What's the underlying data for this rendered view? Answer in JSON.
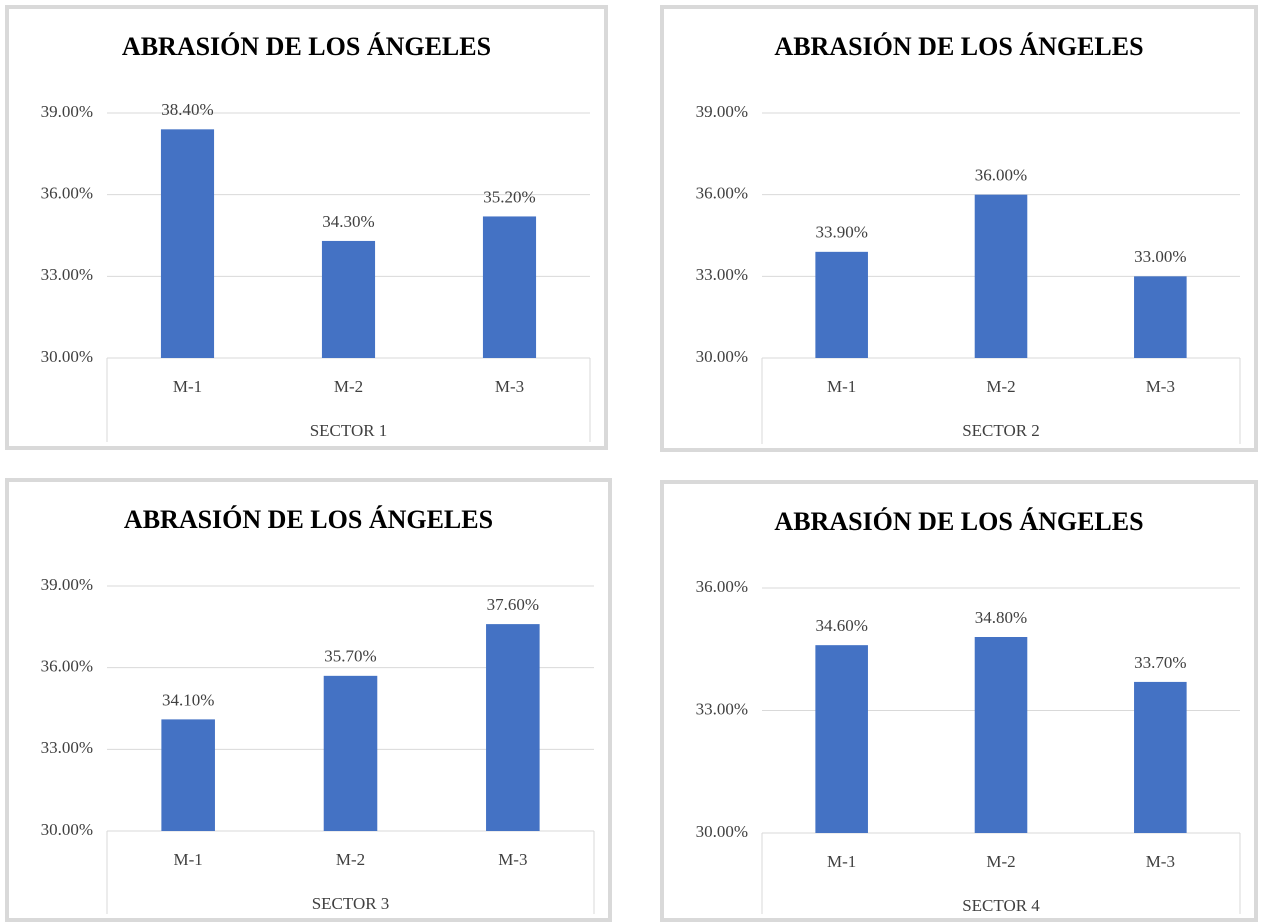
{
  "chart_data": [
    {
      "type": "bar",
      "title": "ABRASIÓN DE LOS ÁNGELES",
      "xlabel": "SECTOR 1",
      "categories": [
        "M-1",
        "M-2",
        "M-3"
      ],
      "values": [
        38.4,
        34.3,
        35.2
      ],
      "value_labels": [
        "38.40%",
        "34.30%",
        "35.20%"
      ],
      "color": "#4472c4",
      "ylim": [
        30,
        39
      ],
      "yticks": [
        {
          "value": 30,
          "label": "30.00%"
        },
        {
          "value": 33,
          "label": "33.00%"
        },
        {
          "value": 36,
          "label": "36.00%"
        },
        {
          "value": 39,
          "label": "39.00%"
        }
      ],
      "grid": true
    },
    {
      "type": "bar",
      "title": "ABRASIÓN DE LOS ÁNGELES",
      "xlabel": "SECTOR 2",
      "categories": [
        "M-1",
        "M-2",
        "M-3"
      ],
      "values": [
        33.9,
        36.0,
        33.0
      ],
      "value_labels": [
        "33.90%",
        "36.00%",
        "33.00%"
      ],
      "color": "#4472c4",
      "ylim": [
        30,
        39
      ],
      "yticks": [
        {
          "value": 30,
          "label": "30.00%"
        },
        {
          "value": 33,
          "label": "33.00%"
        },
        {
          "value": 36,
          "label": "36.00%"
        },
        {
          "value": 39,
          "label": "39.00%"
        }
      ],
      "grid": true
    },
    {
      "type": "bar",
      "title": "ABRASIÓN DE LOS ÁNGELES",
      "xlabel": "SECTOR 3",
      "categories": [
        "M-1",
        "M-2",
        "M-3"
      ],
      "values": [
        34.1,
        35.7,
        37.6
      ],
      "value_labels": [
        "34.10%",
        "35.70%",
        "37.60%"
      ],
      "color": "#4472c4",
      "ylim": [
        30,
        39
      ],
      "yticks": [
        {
          "value": 30,
          "label": "30.00%"
        },
        {
          "value": 33,
          "label": "33.00%"
        },
        {
          "value": 36,
          "label": "36.00%"
        },
        {
          "value": 39,
          "label": "39.00%"
        }
      ],
      "grid": true
    },
    {
      "type": "bar",
      "title": "ABRASIÓN DE LOS ÁNGELES",
      "xlabel": "SECTOR 4",
      "categories": [
        "M-1",
        "M-2",
        "M-3"
      ],
      "values": [
        34.6,
        34.8,
        33.7
      ],
      "value_labels": [
        "34.60%",
        "34.80%",
        "33.70%"
      ],
      "color": "#4472c4",
      "ylim": [
        30,
        36
      ],
      "yticks": [
        {
          "value": 30,
          "label": "30.00%"
        },
        {
          "value": 33,
          "label": "33.00%"
        },
        {
          "value": 36,
          "label": "36.00%"
        }
      ],
      "grid": true
    }
  ]
}
